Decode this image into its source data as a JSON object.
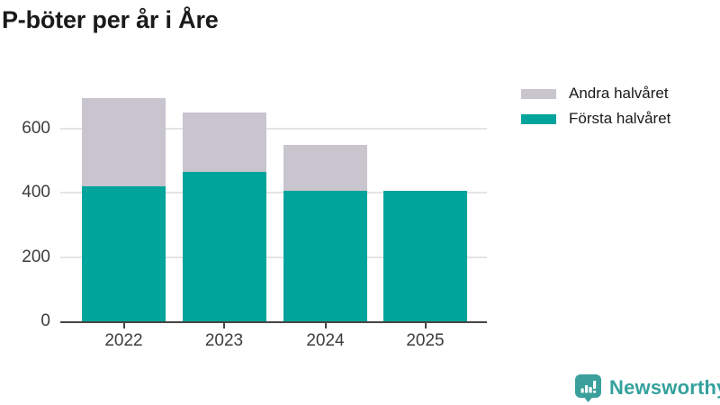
{
  "title": "P-böter per år i Åre",
  "chart_data": {
    "type": "bar",
    "stacked": true,
    "title": "P-böter per år i Åre",
    "categories": [
      "2022",
      "2023",
      "2024",
      "2025"
    ],
    "series": [
      {
        "name": "Första halvåret",
        "color": "#00a49b",
        "values": [
          420,
          465,
          405,
          405
        ]
      },
      {
        "name": "Andra halvåret",
        "color": "#c8c5cf",
        "values": [
          275,
          185,
          145,
          0
        ]
      }
    ],
    "totals": [
      695,
      650,
      550,
      405
    ],
    "xlabel": "",
    "ylabel": "",
    "y_ticks": [
      0,
      200,
      400,
      600
    ],
    "ylim": [
      0,
      700
    ],
    "grid": "horizontal",
    "legend_position": "top-right"
  },
  "legend": {
    "items": [
      {
        "label": "Andra halvåret",
        "color": "#c8c5cf"
      },
      {
        "label": "Första halvåret",
        "color": "#00a49b"
      }
    ]
  },
  "branding": {
    "name": "Newsworthy",
    "text_color": "#35a19c",
    "icon": "newsworthy-chart-bubble-icon",
    "icon_color": "#3ba09c"
  },
  "colors": {
    "axis": "#454545",
    "gridline": "#e4e4e6",
    "tick_label": "#3d3d3d",
    "title": "#1a1a1a"
  }
}
